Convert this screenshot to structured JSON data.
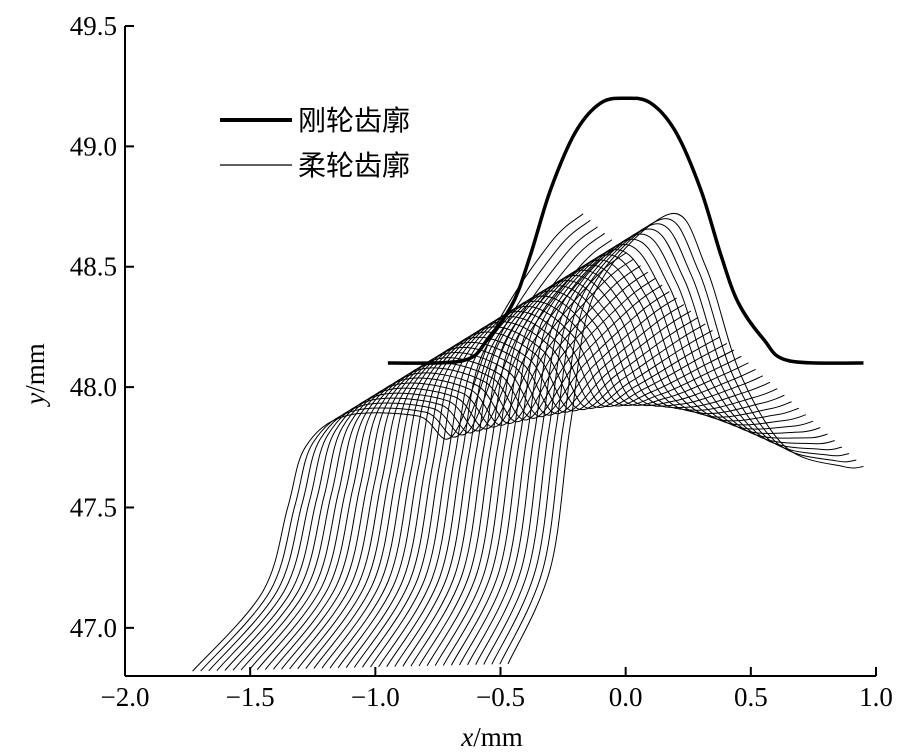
{
  "chart_data": {
    "type": "line",
    "title": "",
    "xlabel": {
      "var": "x",
      "unit": "/mm"
    },
    "ylabel": {
      "var": "y",
      "unit": "/mm"
    },
    "xlim": [
      -2.0,
      1.0
    ],
    "ylim": [
      46.8,
      49.5
    ],
    "xticks": [
      -2.0,
      -1.5,
      -1.0,
      -0.5,
      0.0,
      0.5,
      1.0
    ],
    "xtick_labels": [
      "−2.0",
      "−1.5",
      "−1.0",
      "−0.5",
      "0.0",
      "0.5",
      "1.0"
    ],
    "yticks": [
      47.0,
      47.5,
      48.0,
      48.5,
      49.0,
      49.5
    ],
    "ytick_labels": [
      "47.0",
      "47.5",
      "48.0",
      "48.5",
      "49.0",
      "49.5"
    ],
    "grid": false,
    "legend_position": "top-left",
    "series": [
      {
        "name": "刚轮齿廓",
        "style": "thick",
        "x": [
          -0.95,
          -0.65,
          -0.55,
          -0.45,
          -0.38,
          -0.3,
          -0.2,
          -0.1,
          0.0,
          0.1,
          0.2,
          0.3,
          0.38,
          0.45,
          0.55,
          0.65,
          0.95
        ],
        "y": [
          48.1,
          48.11,
          48.2,
          48.35,
          48.55,
          48.82,
          49.06,
          49.18,
          49.2,
          49.18,
          49.06,
          48.82,
          48.55,
          48.35,
          48.2,
          48.11,
          48.1
        ]
      },
      {
        "name": "柔轮齿廓",
        "style": "thin",
        "family": true,
        "count": 40,
        "start": {
          "x": [
            -1.73,
            -1.45,
            -1.35,
            -1.28,
            -1.12,
            -0.83,
            -0.69,
            -0.52,
            -0.3,
            -0.17
          ],
          "y": [
            46.82,
            47.15,
            47.5,
            47.75,
            47.88,
            47.88,
            47.8,
            48.25,
            48.6,
            48.72
          ]
        },
        "end": {
          "x": [
            -0.47,
            -0.3,
            -0.22,
            -0.12,
            0.18,
            0.32,
            0.46,
            0.64,
            0.87,
            0.95
          ],
          "y": [
            46.85,
            47.25,
            47.85,
            48.4,
            48.72,
            48.5,
            48.05,
            47.75,
            47.67,
            47.67
          ]
        }
      }
    ]
  }
}
